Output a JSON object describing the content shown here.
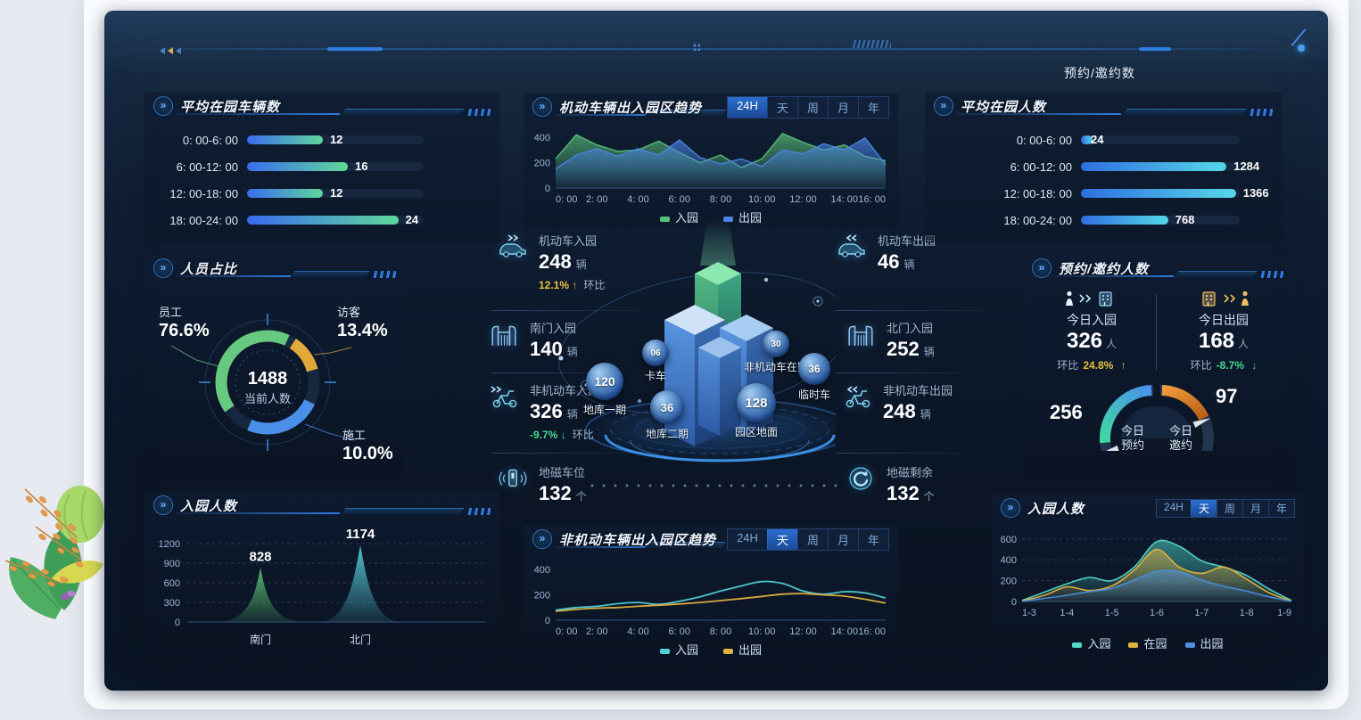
{
  "frame": {
    "top_right_label": "预约/邀约数"
  },
  "colors": {
    "accent_blue": "#2e7de0",
    "green": "#58c07a",
    "blue": "#4a86e8",
    "cyan": "#4fd0d8",
    "yellow": "#e0b23f",
    "teal": "#52d8c8",
    "orange": "#e8872c"
  },
  "avg_vehicles": {
    "title": "平均在园车辆数",
    "max": 28,
    "rows": [
      {
        "label": "0: 00-6: 00",
        "value": 12
      },
      {
        "label": "6: 00-12: 00",
        "value": 16
      },
      {
        "label": "12: 00-18: 00",
        "value": 12
      },
      {
        "label": "18: 00-24: 00",
        "value": 24
      }
    ]
  },
  "staff_ratio": {
    "title": "人员占比",
    "center_value": "1488",
    "center_label": "当前人数",
    "segments": [
      {
        "label": "员工",
        "pct": "76.6%",
        "color": "#67c87f"
      },
      {
        "label": "访客",
        "pct": "13.4%",
        "color": "#e2a83a"
      },
      {
        "label": "施工",
        "pct": "10.0%",
        "color": "#4a8fe8"
      }
    ]
  },
  "entry_left": {
    "title": "入园人数",
    "ymax": 1200,
    "yticks": [
      1200,
      900,
      600,
      300,
      0
    ],
    "points": [
      {
        "label": "南门",
        "value": 828,
        "color": "#5abf72"
      },
      {
        "label": "北门",
        "value": 1174,
        "color": "#54c8d8"
      }
    ]
  },
  "motor_trend": {
    "title": "机动车辆出入园区趋势",
    "tabs": [
      "24H",
      "天",
      "周",
      "月",
      "年"
    ],
    "active_tab": "24H",
    "ymax": 450,
    "yticks": [
      400,
      200,
      0
    ],
    "xlabels": [
      "0: 00",
      "2: 00",
      "4: 00",
      "6: 00",
      "8: 00",
      "10: 00",
      "12: 00",
      "14: 00",
      "16: 00"
    ],
    "series": [
      {
        "name": "入园",
        "color": "#58c07a",
        "values": [
          230,
          420,
          340,
          290,
          300,
          370,
          280,
          200,
          260,
          160,
          230,
          430,
          360,
          300,
          340,
          250,
          215
        ]
      },
      {
        "name": "出园",
        "color": "#4a86e8",
        "values": [
          150,
          260,
          310,
          250,
          310,
          260,
          380,
          240,
          190,
          230,
          170,
          300,
          270,
          350,
          300,
          395,
          185
        ]
      }
    ]
  },
  "center": {
    "stats_left": [
      {
        "label": "机动车入园",
        "value": "248",
        "unit": "辆",
        "delta": "12.1%",
        "delta_dir": "up",
        "delta_label": "环比"
      },
      {
        "label": "南门入园",
        "value": "140",
        "unit": "辆"
      },
      {
        "label": "非机动车入园",
        "value": "326",
        "unit": "辆",
        "delta": "-9.7%",
        "delta_dir": "down",
        "delta_label": "环比"
      },
      {
        "label": "地磁车位",
        "value": "132",
        "unit": "个"
      }
    ],
    "stats_right": [
      {
        "label": "机动车出园",
        "value": "46",
        "unit": "辆"
      },
      {
        "label": "北门入园",
        "value": "252",
        "unit": "辆"
      },
      {
        "label": "非机动车出园",
        "value": "248",
        "unit": "辆"
      },
      {
        "label": "地磁剩余",
        "value": "132",
        "unit": "个"
      }
    ],
    "bubbles": [
      {
        "value": "06",
        "label": "卡车"
      },
      {
        "value": "120",
        "label": "地库一期"
      },
      {
        "value": "36",
        "label": "地库二期"
      },
      {
        "value": "128",
        "label": "园区地面"
      },
      {
        "value": "30",
        "label": "非机动车在园"
      },
      {
        "value": "36",
        "label": "临时车"
      }
    ]
  },
  "nonmotor_trend": {
    "title": "非机动车辆出入园区趋势",
    "tabs": [
      "24H",
      "天",
      "周",
      "月",
      "年"
    ],
    "active_tab": "天",
    "ymax": 450,
    "yticks": [
      400,
      200,
      0
    ],
    "xlabels": [
      "0: 00",
      "2: 00",
      "4: 00",
      "6: 00",
      "8: 00",
      "10: 00",
      "12: 00",
      "14: 00",
      "16: 00"
    ],
    "series": [
      {
        "name": "入园",
        "color": "#4fd0d8",
        "values": [
          80,
          100,
          110,
          130,
          140,
          125,
          150,
          185,
          230,
          270,
          305,
          290,
          230,
          205,
          225,
          215,
          175
        ]
      },
      {
        "name": "出园",
        "color": "#e0b23f",
        "values": [
          70,
          85,
          95,
          100,
          110,
          118,
          128,
          140,
          155,
          170,
          188,
          205,
          210,
          200,
          190,
          165,
          135
        ]
      }
    ]
  },
  "avg_people": {
    "title": "平均在园人数",
    "max": 1400,
    "rows": [
      {
        "label": "0: 00-6: 00",
        "value": 24
      },
      {
        "label": "6: 00-12: 00",
        "value": 1284
      },
      {
        "label": "12: 00-18: 00",
        "value": 1366
      },
      {
        "label": "18: 00-24: 00",
        "value": 768
      }
    ]
  },
  "reservation": {
    "title": "预约/邀约人数",
    "in": {
      "label": "今日入园",
      "value": "326",
      "unit": "人",
      "ratio_label": "环比",
      "ratio": "24.8%",
      "dir": "up"
    },
    "out": {
      "label": "今日出园",
      "value": "168",
      "unit": "人",
      "ratio_label": "环比",
      "ratio": "-8.7%",
      "dir": "down"
    },
    "gauges": [
      {
        "value": "256",
        "label_line1": "今日",
        "label_line2": "预约"
      },
      {
        "value": "97",
        "label_line1": "今日",
        "label_line2": "邀约"
      }
    ]
  },
  "entry_right": {
    "title": "入园人数",
    "tabs": [
      "24H",
      "天",
      "周",
      "月",
      "年"
    ],
    "active_tab": "天",
    "ymax": 650,
    "yticks": [
      600,
      400,
      200,
      0
    ],
    "xlabels": [
      "1-3",
      "1-4",
      "1-5",
      "1-6",
      "1-7",
      "1-8",
      "1-9"
    ],
    "series": [
      {
        "name": "入园",
        "color": "#52d8c8",
        "values": [
          10,
          90,
          170,
          230,
          200,
          330,
          575,
          530,
          390,
          330,
          250,
          120,
          10
        ]
      },
      {
        "name": "在园",
        "color": "#e6b33c",
        "values": [
          5,
          60,
          140,
          105,
          150,
          300,
          500,
          330,
          270,
          330,
          215,
          85,
          5
        ]
      },
      {
        "name": "出园",
        "color": "#4a8fe0",
        "values": [
          2,
          30,
          60,
          95,
          125,
          205,
          290,
          285,
          205,
          145,
          100,
          45,
          2
        ]
      }
    ]
  }
}
